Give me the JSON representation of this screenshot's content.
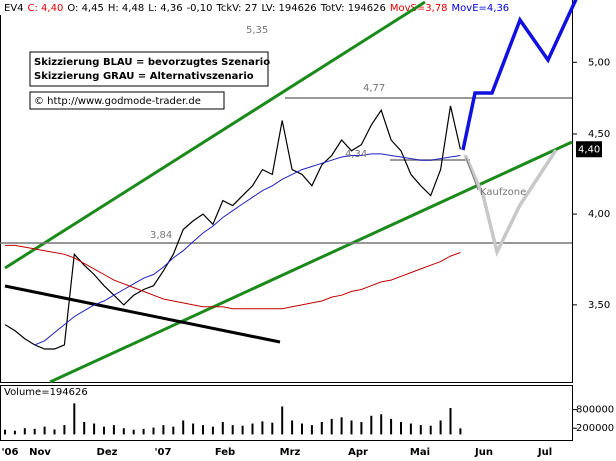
{
  "header": [
    {
      "text": "EV4",
      "color": "#000000"
    },
    {
      "text": "C: 4,40",
      "color": "#e00000"
    },
    {
      "text": "O: 4,45",
      "color": "#000000"
    },
    {
      "text": "H: 4,48",
      "color": "#000000"
    },
    {
      "text": "L: 4,36",
      "color": "#000000"
    },
    {
      "text": "-0,10",
      "color": "#000000"
    },
    {
      "text": "TckV: 27",
      "color": "#000000"
    },
    {
      "text": "LV: 194626",
      "color": "#000000"
    },
    {
      "text": "TotV: 194626",
      "color": "#000000"
    },
    {
      "text": "MovS=3,78",
      "color": "#e00000"
    },
    {
      "text": "MovE=4,36",
      "color": "#0000e0"
    }
  ],
  "legend_box": [
    "Skizzierung BLAU = bevorzugtes Szenario",
    "Skizzierung GRAU = Alternativszenario"
  ],
  "copyright": "© http://www.godmode-trader.de",
  "x_labels": [
    "'06",
    "Nov",
    "Dez",
    "'07",
    "Feb",
    "Mrz",
    "Apr",
    "Mai",
    "Jun",
    "Jul"
  ],
  "chart_data": [
    {
      "type": "line",
      "log_scale": true,
      "ylim": [
        3.12,
        5.48
      ],
      "yticks": [
        {
          "value": 3.5,
          "label": "3,50"
        },
        {
          "value": 4,
          "label": "4,00"
        },
        {
          "value": 4.5,
          "label": "4,50"
        },
        {
          "value": 5,
          "label": "5,00"
        }
      ],
      "last_price": {
        "value": 4.4,
        "label": "4,40"
      },
      "annotations": [
        "5,35",
        "4,77",
        "3,84",
        "4,34",
        "Kaufzone"
      ],
      "series": [
        {
          "name": "Kurs",
          "color": "#000000",
          "values": [
            3.4,
            3.37,
            3.33,
            3.3,
            3.28,
            3.28,
            3.3,
            3.77,
            3.71,
            3.66,
            3.6,
            3.55,
            3.5,
            3.55,
            3.58,
            3.6,
            3.68,
            3.77,
            3.91,
            3.96,
            4.0,
            3.94,
            4.08,
            4.05,
            4.11,
            4.17,
            4.27,
            4.24,
            4.59,
            4.27,
            4.24,
            4.17,
            4.3,
            4.36,
            4.46,
            4.39,
            4.43,
            4.56,
            4.66,
            4.46,
            4.39,
            4.24,
            4.17,
            4.11,
            4.27,
            4.69,
            4.4
          ]
        },
        {
          "name": "MovE",
          "color": "#2020c0",
          "values": [
            null,
            null,
            null,
            3.3,
            3.32,
            3.36,
            3.4,
            3.44,
            3.47,
            3.5,
            3.52,
            3.55,
            3.58,
            3.61,
            3.64,
            3.66,
            3.7,
            3.75,
            3.79,
            3.84,
            3.89,
            3.93,
            3.98,
            4.02,
            4.06,
            4.1,
            4.14,
            4.17,
            4.21,
            4.24,
            4.27,
            4.29,
            4.31,
            4.33,
            4.35,
            4.36,
            4.36,
            4.37,
            4.37,
            4.36,
            4.35,
            4.34,
            4.33,
            4.33,
            4.34,
            4.35,
            4.36
          ]
        },
        {
          "name": "MovS",
          "color": "#c00000",
          "values": [
            3.82,
            3.82,
            3.81,
            3.8,
            3.79,
            3.78,
            3.77,
            3.75,
            3.72,
            3.69,
            3.66,
            3.63,
            3.61,
            3.59,
            3.57,
            3.55,
            3.53,
            3.52,
            3.51,
            3.5,
            3.49,
            3.49,
            3.49,
            3.48,
            3.48,
            3.48,
            3.48,
            3.48,
            3.48,
            3.49,
            3.5,
            3.51,
            3.52,
            3.54,
            3.55,
            3.57,
            3.58,
            3.6,
            3.62,
            3.63,
            3.65,
            3.67,
            3.69,
            3.71,
            3.73,
            3.76,
            3.78
          ]
        }
      ]
    },
    {
      "type": "bar",
      "title": "Volume=194626",
      "color": "#000000",
      "ylim": [
        -180000,
        1560000
      ],
      "yticks": [
        200000,
        800000
      ],
      "values": [
        150000,
        120000,
        200000,
        180000,
        250000,
        160000,
        300000,
        1000000,
        400000,
        350000,
        250000,
        300000,
        200000,
        150000,
        180000,
        220000,
        300000,
        250000,
        450000,
        350000,
        300000,
        250000,
        400000,
        300000,
        280000,
        350000,
        420000,
        380000,
        900000,
        450000,
        350000,
        300000,
        400000,
        500000,
        550000,
        450000,
        400000,
        600000,
        650000,
        500000,
        400000,
        350000,
        300000,
        280000,
        450000,
        850000,
        194626
      ]
    }
  ]
}
